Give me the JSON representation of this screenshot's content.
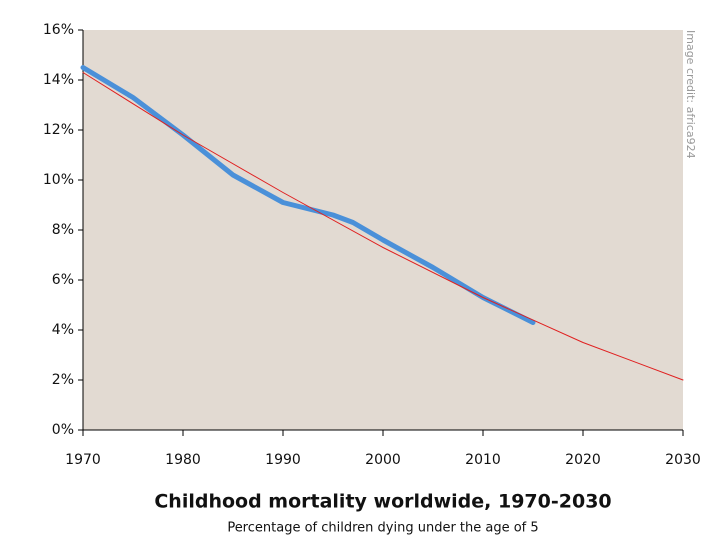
{
  "chart_data": {
    "type": "line",
    "title": "Childhood mortality worldwide, 1970-2030",
    "subtitle": "Percentage of children dying under the age of 5",
    "annotation": "Image credit: africa924",
    "xlim": [
      1970,
      2030
    ],
    "xticks": [
      1970,
      1980,
      1990,
      2000,
      2010,
      2020,
      2030
    ],
    "ylim": [
      0,
      16
    ],
    "yticks": [
      {
        "value": 0,
        "label": "0%"
      },
      {
        "value": 2,
        "label": "2%"
      },
      {
        "value": 4,
        "label": "4%"
      },
      {
        "value": 6,
        "label": "6%"
      },
      {
        "value": 8,
        "label": "8%"
      },
      {
        "value": 10,
        "label": "10%"
      },
      {
        "value": 12,
        "label": "12%"
      },
      {
        "value": 14,
        "label": "14%"
      },
      {
        "value": 16,
        "label": "16%"
      }
    ],
    "series": [
      {
        "color": "#4a90d9",
        "width": 5,
        "x": [
          1970,
          1975,
          1980,
          1985,
          1990,
          1993,
          1995,
          1997,
          2000,
          2005,
          2010,
          2015
        ],
        "values": [
          14.5,
          13.3,
          11.8,
          10.2,
          9.1,
          8.8,
          8.6,
          8.3,
          7.6,
          6.5,
          5.3,
          4.3
        ]
      },
      {
        "color": "#e02020",
        "width": 1,
        "x": [
          1970,
          1980,
          1990,
          2000,
          2010,
          2020,
          2030
        ],
        "values": [
          14.3,
          11.8,
          9.5,
          7.3,
          5.3,
          3.5,
          2.0
        ]
      }
    ]
  }
}
